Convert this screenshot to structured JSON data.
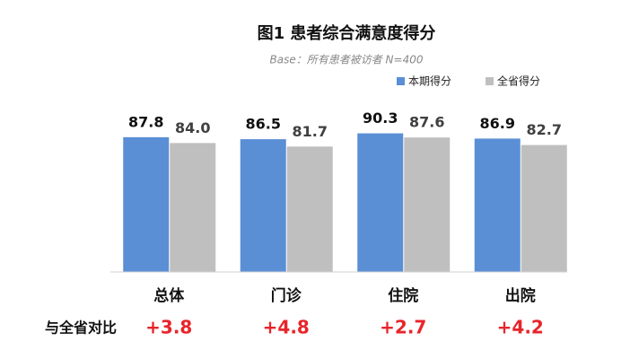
{
  "chart_data": {
    "type": "bar",
    "title": "图1 患者综合满意度得分",
    "subtitle": "Base：所有患者被访者 N=400",
    "categories": [
      "总体",
      "门诊",
      "住院",
      "出院"
    ],
    "series": [
      {
        "name": "本期得分",
        "color": "#5a8fd6",
        "values": [
          87.8,
          86.5,
          90.3,
          86.9
        ],
        "value_labels": [
          "87.8",
          "86.5",
          "90.3",
          "86.9"
        ]
      },
      {
        "name": "全省得分",
        "color": "#bfbfbf",
        "values": [
          84.0,
          81.7,
          87.6,
          82.7
        ],
        "value_labels": [
          "84.0",
          "81.7",
          "87.6",
          "82.7"
        ]
      }
    ],
    "ylim": [
      0,
      100
    ],
    "comparison": {
      "label": "与全省对比",
      "values": [
        "+3.8",
        "+4.8",
        "+2.7",
        "+4.2"
      ]
    }
  }
}
